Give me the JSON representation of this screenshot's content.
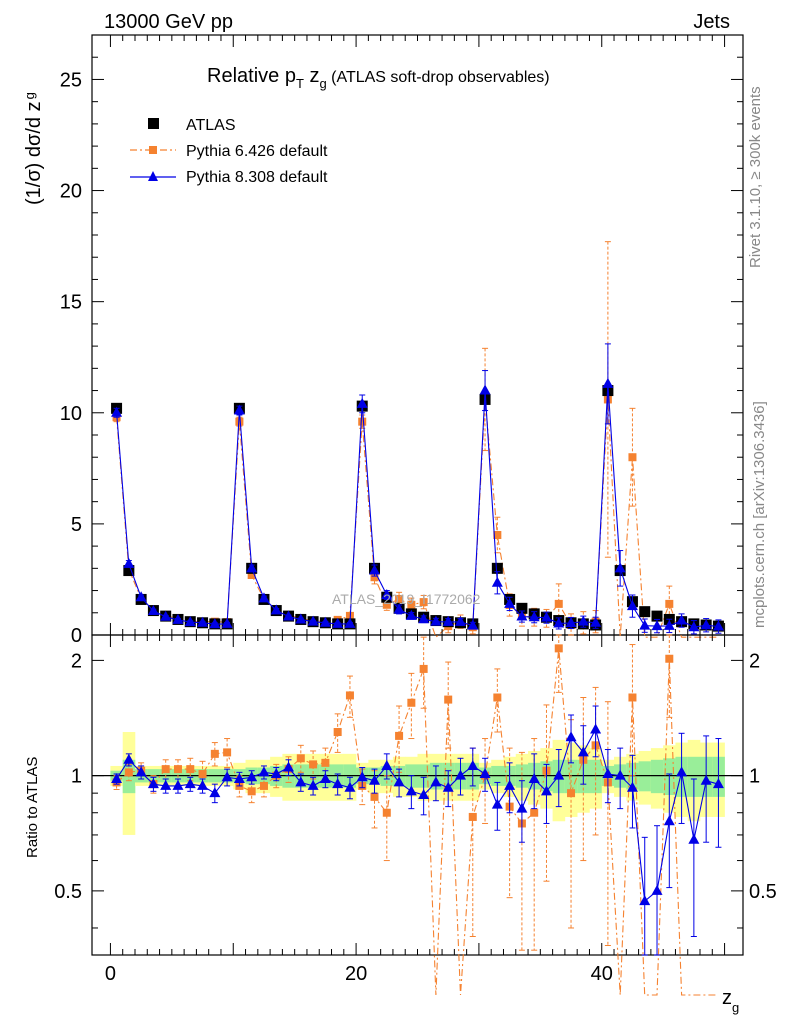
{
  "header": {
    "energy": "13000 GeV pp",
    "process": "Jets"
  },
  "side": {
    "rivet": "Rivet 3.1.10, ≥ 300k events",
    "mcplots": "mcplots.cern.ch [arXiv:1306.3436]"
  },
  "watermark": "ATLAS_2019_I1772062",
  "colors": {
    "data": "#000000",
    "pythia6": "#f58230",
    "pythia8": "#0000e6",
    "band_yellow": "#ffff99",
    "band_green": "#99ee99"
  },
  "chart_data": [
    {
      "type": "scatter",
      "title_main": "Relative p",
      "title_sub_t": "T",
      "title_z": " z",
      "title_sub_g": "g",
      "title_rest": " (ATLAS soft-drop observables)",
      "ylabel": "(1/σ) dσ/d z",
      "ylabel_sub": "g",
      "xlim": [
        -1.5,
        51.5
      ],
      "ylim": [
        0,
        27
      ],
      "yticks": [
        0,
        5,
        10,
        15,
        20,
        25
      ],
      "ytick_labels": [
        "0",
        "5",
        "10",
        "15",
        "20",
        "25"
      ],
      "legend": [
        "ATLAS",
        "Pythia 6.426 default",
        "Pythia 8.308 default"
      ],
      "x": [
        0.5,
        1.5,
        2.5,
        3.5,
        4.5,
        5.5,
        6.5,
        7.5,
        8.5,
        9.5,
        10.5,
        11.5,
        12.5,
        13.5,
        14.5,
        15.5,
        16.5,
        17.5,
        18.5,
        19.5,
        20.5,
        21.5,
        22.5,
        23.5,
        24.5,
        25.5,
        26.5,
        27.5,
        28.5,
        29.5,
        30.5,
        31.5,
        32.5,
        33.5,
        34.5,
        35.5,
        36.5,
        37.5,
        38.5,
        39.5,
        40.5,
        41.5,
        42.5,
        43.5,
        44.5,
        45.5,
        46.5,
        47.5,
        48.5,
        49.5
      ],
      "series": [
        {
          "name": "ATLAS",
          "values": [
            10.2,
            2.9,
            1.6,
            1.1,
            0.85,
            0.7,
            0.6,
            0.55,
            0.5,
            0.5,
            10.2,
            3.0,
            1.6,
            1.1,
            0.85,
            0.7,
            0.6,
            0.55,
            0.5,
            0.5,
            10.3,
            3.0,
            1.7,
            1.2,
            0.95,
            0.8,
            0.65,
            0.6,
            0.55,
            0.5,
            10.6,
            3.0,
            1.6,
            1.2,
            0.95,
            0.8,
            0.65,
            0.55,
            0.5,
            0.45,
            11.0,
            2.9,
            1.5,
            1.05,
            0.85,
            0.7,
            0.6,
            0.5,
            0.45,
            0.4
          ]
        },
        {
          "name": "Pythia 6.426 default",
          "values": [
            9.8,
            2.95,
            1.65,
            1.05,
            0.88,
            0.72,
            0.62,
            0.6,
            0.6,
            0.58,
            9.6,
            2.7,
            1.6,
            1.08,
            0.9,
            0.74,
            0.64,
            0.6,
            0.68,
            0.86,
            9.6,
            2.6,
            1.36,
            1.62,
            1.36,
            1.48,
            -0.1,
            0.4,
            0.6,
            0.35,
            10.6,
            4.5,
            1.35,
            0.85,
            0.8,
            0.75,
            1.4,
            0.45,
            0.55,
            0.6,
            10.6,
            -0.1,
            8.0,
            -0.1,
            -0.1,
            1.4,
            -0.1,
            -0.1,
            -0.1,
            -0.1
          ],
          "errors": [
            0.2,
            0.15,
            0.1,
            0.1,
            0.08,
            0.08,
            0.08,
            0.08,
            0.1,
            0.1,
            0.2,
            0.15,
            0.1,
            0.08,
            0.08,
            0.08,
            0.08,
            0.08,
            0.1,
            0.15,
            0.3,
            0.3,
            0.25,
            0.3,
            0.3,
            0.3,
            0.4,
            0.3,
            0.3,
            0.3,
            2.3,
            0.8,
            0.5,
            0.45,
            0.4,
            0.4,
            0.9,
            0.5,
            0.5,
            0.5,
            7.1,
            0.8,
            2.2,
            0.8,
            0.8,
            0.8,
            0.8,
            0.8,
            0.8,
            0.8
          ]
        },
        {
          "name": "Pythia 8.308 default",
          "values": [
            10.0,
            3.2,
            1.7,
            1.08,
            0.82,
            0.68,
            0.58,
            0.55,
            0.49,
            0.5,
            10.1,
            3.0,
            1.65,
            1.11,
            0.83,
            0.7,
            0.6,
            0.55,
            0.5,
            0.5,
            10.4,
            2.9,
            1.8,
            1.15,
            0.86,
            0.71,
            0.6,
            0.59,
            0.59,
            0.42,
            11.0,
            2.35,
            1.4,
            0.83,
            0.8,
            0.78,
            0.52,
            0.54,
            0.6,
            0.55,
            11.3,
            3.0,
            1.3,
            0.42,
            0.4,
            0.41,
            0.65,
            0.35,
            0.44,
            0.38
          ],
          "errors": [
            0.2,
            0.15,
            0.1,
            0.08,
            0.06,
            0.06,
            0.06,
            0.06,
            0.06,
            0.06,
            0.2,
            0.15,
            0.1,
            0.08,
            0.06,
            0.06,
            0.06,
            0.06,
            0.06,
            0.06,
            0.4,
            0.25,
            0.2,
            0.2,
            0.15,
            0.15,
            0.15,
            0.15,
            0.15,
            0.15,
            0.9,
            0.5,
            0.3,
            0.25,
            0.25,
            0.25,
            0.25,
            0.25,
            0.25,
            0.25,
            1.8,
            0.8,
            0.5,
            0.3,
            0.3,
            0.3,
            0.3,
            0.3,
            0.3,
            0.3
          ]
        }
      ]
    },
    {
      "type": "scatter",
      "ylabel": "Ratio to ATLAS",
      "xlabel": "z",
      "xlabel_sub": "g",
      "xlim": [
        -1.5,
        51.5
      ],
      "xticks": [
        0,
        20,
        40
      ],
      "xtick_labels": [
        "0",
        "20",
        "40"
      ],
      "ylim": [
        0.34,
        2.33
      ],
      "yticks": [
        0.5,
        1,
        2
      ],
      "ytick_labels": [
        "0.5",
        "1",
        "2"
      ],
      "x": [
        0.5,
        1.5,
        2.5,
        3.5,
        4.5,
        5.5,
        6.5,
        7.5,
        8.5,
        9.5,
        10.5,
        11.5,
        12.5,
        13.5,
        14.5,
        15.5,
        16.5,
        17.5,
        18.5,
        19.5,
        20.5,
        21.5,
        22.5,
        23.5,
        24.5,
        25.5,
        26.5,
        27.5,
        28.5,
        29.5,
        30.5,
        31.5,
        32.5,
        33.5,
        34.5,
        35.5,
        36.5,
        37.5,
        38.5,
        39.5,
        40.5,
        41.5,
        42.5,
        43.5,
        44.5,
        45.5,
        46.5,
        47.5,
        48.5,
        49.5
      ],
      "band_yellow_halfwidth": [
        0.06,
        0.3,
        0.06,
        0.06,
        0.06,
        0.06,
        0.06,
        0.06,
        0.06,
        0.06,
        0.08,
        0.1,
        0.1,
        0.12,
        0.14,
        0.14,
        0.14,
        0.14,
        0.14,
        0.14,
        0.08,
        0.1,
        0.1,
        0.12,
        0.12,
        0.14,
        0.14,
        0.14,
        0.14,
        0.14,
        0.08,
        0.1,
        0.12,
        0.14,
        0.16,
        0.18,
        0.24,
        0.22,
        0.2,
        0.18,
        0.1,
        0.12,
        0.14,
        0.16,
        0.18,
        0.2,
        0.22,
        0.24,
        0.22,
        0.22
      ],
      "band_green_halfwidth": [
        0.03,
        0.1,
        0.04,
        0.04,
        0.04,
        0.04,
        0.04,
        0.04,
        0.04,
        0.04,
        0.04,
        0.05,
        0.05,
        0.06,
        0.07,
        0.07,
        0.07,
        0.07,
        0.07,
        0.07,
        0.05,
        0.05,
        0.06,
        0.06,
        0.07,
        0.07,
        0.08,
        0.08,
        0.08,
        0.08,
        0.05,
        0.06,
        0.06,
        0.07,
        0.08,
        0.09,
        0.1,
        0.1,
        0.1,
        0.1,
        0.06,
        0.07,
        0.08,
        0.09,
        0.1,
        0.11,
        0.12,
        0.12,
        0.12,
        0.12
      ],
      "series": [
        {
          "name": "Pythia 6.426 default",
          "values": [
            0.96,
            1.02,
            1.03,
            0.95,
            1.04,
            1.04,
            1.04,
            1.01,
            1.14,
            1.15,
            0.94,
            0.91,
            0.94,
            1.0,
            1.04,
            1.11,
            1.07,
            1.08,
            1.3,
            1.62,
            0.94,
            0.88,
            0.8,
            1.27,
            1.55,
            1.9,
            null,
            1.58,
            null,
            0.78,
            1.0,
            1.6,
            0.83,
            0.75,
            0.8,
            1.03,
            2.15,
            0.9,
            1.1,
            1.2,
            0.96,
            null,
            1.6,
            null,
            null,
            2.02,
            null,
            null,
            null,
            null
          ],
          "errors": [
            0.04,
            0.05,
            0.05,
            0.05,
            0.06,
            0.06,
            0.07,
            0.08,
            0.08,
            0.1,
            0.06,
            0.06,
            0.06,
            0.07,
            0.08,
            0.09,
            0.09,
            0.1,
            0.15,
            0.2,
            0.1,
            0.15,
            0.2,
            0.25,
            0.3,
            0.4,
            0.4,
            0.4,
            0.4,
            0.4,
            0.25,
            0.3,
            0.35,
            0.4,
            0.45,
            0.5,
            0.5,
            0.5,
            0.5,
            0.5,
            0.6,
            0.6,
            0.6,
            0.6,
            0.6,
            0.6,
            0.6,
            0.6,
            0.6,
            0.6
          ]
        },
        {
          "name": "Pythia 8.308 default",
          "values": [
            0.98,
            1.1,
            1.02,
            0.95,
            0.94,
            0.94,
            0.95,
            0.94,
            0.9,
            0.99,
            0.98,
            0.99,
            1.02,
            1.01,
            1.05,
            0.96,
            0.94,
            0.98,
            0.95,
            0.93,
            0.99,
            0.97,
            1.06,
            0.96,
            0.91,
            0.89,
            0.96,
            0.93,
            1.0,
            1.06,
            1.01,
            0.84,
            0.94,
            0.82,
            0.98,
            0.91,
            1.0,
            1.26,
            1.15,
            1.32,
            1.01,
            1.0,
            0.93,
            0.47,
            0.5,
            0.76,
            1.02,
            0.68,
            0.97,
            0.95
          ],
          "errors": [
            0.03,
            0.04,
            0.04,
            0.04,
            0.04,
            0.04,
            0.04,
            0.04,
            0.05,
            0.05,
            0.04,
            0.04,
            0.04,
            0.04,
            0.05,
            0.05,
            0.05,
            0.05,
            0.06,
            0.06,
            0.06,
            0.07,
            0.08,
            0.08,
            0.09,
            0.1,
            0.1,
            0.1,
            0.11,
            0.12,
            0.1,
            0.12,
            0.14,
            0.15,
            0.16,
            0.16,
            0.17,
            0.18,
            0.2,
            0.2,
            0.16,
            0.18,
            0.2,
            0.22,
            0.24,
            0.25,
            0.27,
            0.3,
            0.3,
            0.3
          ]
        }
      ]
    }
  ]
}
